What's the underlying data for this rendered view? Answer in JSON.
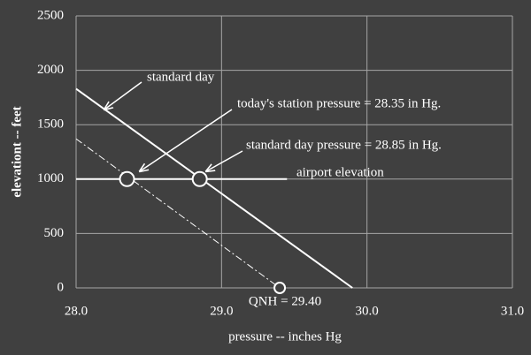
{
  "chart_data": {
    "type": "line",
    "x_label": "pressure -- inches Hg",
    "y_label": "elevationt -- feet",
    "xlim": [
      28,
      31
    ],
    "ylim": [
      0,
      2500
    ],
    "xticks": [
      {
        "value": 28,
        "label": "28.0"
      },
      {
        "value": 29,
        "label": "29.0"
      },
      {
        "value": 30,
        "label": "30.0"
      },
      {
        "value": 31,
        "label": "31.0"
      }
    ],
    "yticks": [
      0,
      500,
      1000,
      1500,
      2000,
      2500
    ],
    "grid": true,
    "series": [
      {
        "name": "standard day",
        "color": "#ffffff",
        "dash": "solid",
        "x": [
          28.0,
          29.9
        ],
        "values": [
          1830,
          0
        ]
      },
      {
        "color": "#ffffff",
        "dash": "dashdot",
        "x": [
          28.0,
          29.4
        ],
        "values": [
          1370,
          0
        ]
      },
      {
        "name": "airport elevation",
        "color": "#ffffff",
        "dash": "solid",
        "x": [
          28.0,
          29.45
        ],
        "values": [
          1000,
          1000
        ]
      }
    ],
    "points": {
      "color": "#ffffff",
      "x": [
        28.35,
        28.85,
        29.4
      ],
      "values": [
        1000,
        1000,
        0
      ]
    },
    "annotations": [
      "today's station pressure = 28.35 in Hg.",
      "standard day pressure = 28.85 in Hg.",
      "QNH = 29.40"
    ]
  }
}
